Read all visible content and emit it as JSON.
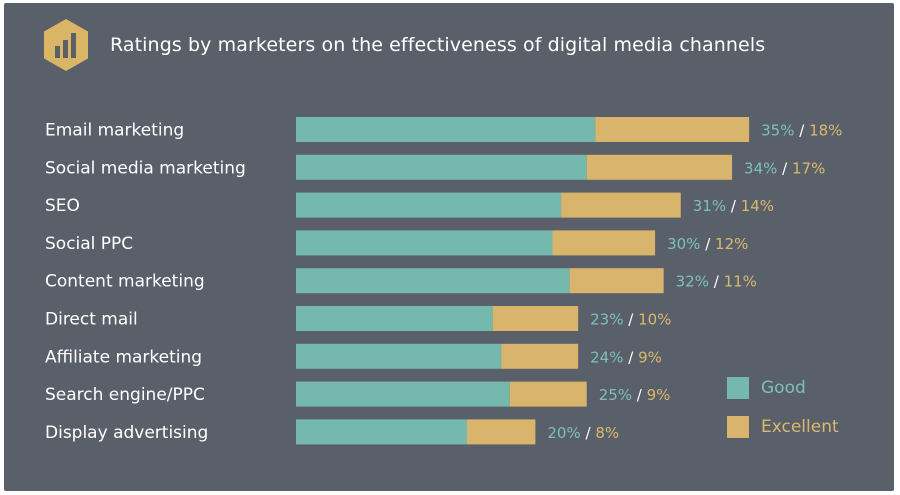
{
  "title": "Ratings by marketers on the effectiveness of digital media channels",
  "icon": "bar-chart-icon",
  "colors": {
    "background": "#59606a",
    "good": "#74b8ae",
    "excellent": "#d8b46c",
    "icon_bg": "#d9b566",
    "label": "#ffffff"
  },
  "legend": {
    "good_label": "Good",
    "excellent_label": "Excellent",
    "placement": "bottom-right"
  },
  "chart_data": {
    "type": "bar",
    "orientation": "horizontal",
    "stacked": true,
    "title": "Ratings by marketers on the effectiveness of digital media channels",
    "categories": [
      "Email marketing",
      "Social media marketing",
      "SEO",
      "Social PPC",
      "Content marketing",
      "Direct mail",
      "Affiliate marketing",
      "Search engine/PPC",
      "Display advertising"
    ],
    "series": [
      {
        "name": "Good",
        "values": [
          35,
          34,
          31,
          30,
          32,
          23,
          24,
          25,
          20
        ]
      },
      {
        "name": "Excellent",
        "values": [
          18,
          17,
          14,
          12,
          11,
          10,
          9,
          9,
          8
        ]
      }
    ],
    "value_labels": [
      [
        "35%",
        "18%"
      ],
      [
        "34%",
        "17%"
      ],
      [
        "31%",
        "14%"
      ],
      [
        "30%",
        "12%"
      ],
      [
        "32%",
        "11%"
      ],
      [
        "23%",
        "10%"
      ],
      [
        "24%",
        "9%"
      ],
      [
        "25%",
        "9%"
      ],
      [
        "20%",
        "8%"
      ]
    ],
    "unit": "%",
    "grid": false,
    "legend_placement": "bottom-right"
  }
}
